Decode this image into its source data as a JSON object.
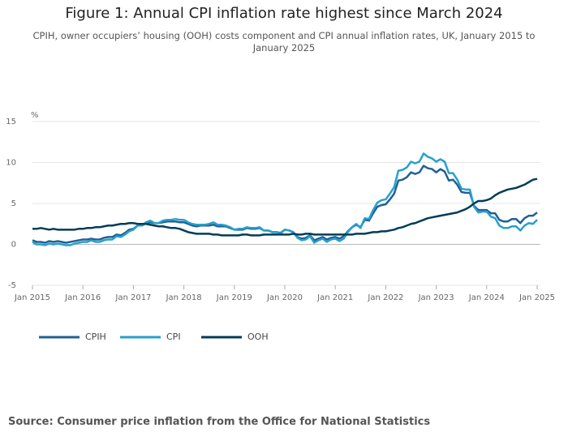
{
  "chart_data": {
    "type": "line",
    "title": "Figure 1: Annual CPI inflation rate highest since March 2024",
    "subtitle": "CPIH, owner occupiers’ housing (OOH) costs component and CPI annual inflation rates, UK, January 2015 to January 2025",
    "y_unit": "%",
    "source": "Source: Consumer price inflation from the Office for National Statistics",
    "x": [
      "2015-01",
      "2015-02",
      "2015-03",
      "2015-04",
      "2015-05",
      "2015-06",
      "2015-07",
      "2015-08",
      "2015-09",
      "2015-10",
      "2015-11",
      "2015-12",
      "2016-01",
      "2016-02",
      "2016-03",
      "2016-04",
      "2016-05",
      "2016-06",
      "2016-07",
      "2016-08",
      "2016-09",
      "2016-10",
      "2016-11",
      "2016-12",
      "2017-01",
      "2017-02",
      "2017-03",
      "2017-04",
      "2017-05",
      "2017-06",
      "2017-07",
      "2017-08",
      "2017-09",
      "2017-10",
      "2017-11",
      "2017-12",
      "2018-01",
      "2018-02",
      "2018-03",
      "2018-04",
      "2018-05",
      "2018-06",
      "2018-07",
      "2018-08",
      "2018-09",
      "2018-10",
      "2018-11",
      "2018-12",
      "2019-01",
      "2019-02",
      "2019-03",
      "2019-04",
      "2019-05",
      "2019-06",
      "2019-07",
      "2019-08",
      "2019-09",
      "2019-10",
      "2019-11",
      "2019-12",
      "2020-01",
      "2020-02",
      "2020-03",
      "2020-04",
      "2020-05",
      "2020-06",
      "2020-07",
      "2020-08",
      "2020-09",
      "2020-10",
      "2020-11",
      "2020-12",
      "2021-01",
      "2021-02",
      "2021-03",
      "2021-04",
      "2021-05",
      "2021-06",
      "2021-07",
      "2021-08",
      "2021-09",
      "2021-10",
      "2021-11",
      "2021-12",
      "2022-01",
      "2022-02",
      "2022-03",
      "2022-04",
      "2022-05",
      "2022-06",
      "2022-07",
      "2022-08",
      "2022-09",
      "2022-10",
      "2022-11",
      "2022-12",
      "2023-01",
      "2023-02",
      "2023-03",
      "2023-04",
      "2023-05",
      "2023-06",
      "2023-07",
      "2023-08",
      "2023-09",
      "2023-10",
      "2023-11",
      "2023-12",
      "2024-01",
      "2024-02",
      "2024-03",
      "2024-04",
      "2024-05",
      "2024-06",
      "2024-07",
      "2024-08",
      "2024-09",
      "2024-10",
      "2024-11",
      "2024-12",
      "2025-01"
    ],
    "series": [
      {
        "name": "CPIH",
        "color": "#206095",
        "values": [
          0.5,
          0.3,
          0.3,
          0.2,
          0.4,
          0.3,
          0.4,
          0.3,
          0.2,
          0.3,
          0.4,
          0.5,
          0.6,
          0.6,
          0.7,
          0.6,
          0.6,
          0.8,
          0.9,
          0.9,
          1.2,
          1.1,
          1.4,
          1.8,
          1.9,
          2.3,
          2.3,
          2.6,
          2.7,
          2.6,
          2.6,
          2.7,
          2.8,
          2.8,
          2.8,
          2.7,
          2.7,
          2.5,
          2.3,
          2.2,
          2.3,
          2.3,
          2.3,
          2.4,
          2.2,
          2.2,
          2.2,
          2.0,
          1.8,
          1.8,
          1.8,
          2.0,
          1.9,
          1.9,
          2.0,
          1.7,
          1.7,
          1.5,
          1.5,
          1.4,
          1.8,
          1.7,
          1.5,
          0.9,
          0.7,
          0.8,
          1.1,
          0.5,
          0.7,
          0.9,
          0.6,
          0.8,
          0.9,
          0.7,
          1.0,
          1.6,
          2.1,
          2.4,
          2.1,
          3.0,
          2.9,
          3.8,
          4.6,
          4.8,
          4.9,
          5.5,
          6.2,
          7.8,
          7.9,
          8.2,
          8.8,
          8.6,
          8.8,
          9.6,
          9.3,
          9.2,
          8.8,
          9.2,
          8.9,
          7.8,
          7.9,
          7.3,
          6.4,
          6.3,
          6.3,
          4.7,
          4.2,
          4.2,
          4.2,
          3.8,
          3.8,
          3.0,
          2.8,
          2.8,
          3.1,
          3.1,
          2.6,
          3.2,
          3.5,
          3.5,
          3.9
        ]
      },
      {
        "name": "CPI",
        "color": "#27a0cc",
        "values": [
          0.3,
          0.0,
          0.0,
          -0.1,
          0.1,
          0.0,
          0.1,
          0.0,
          -0.1,
          -0.1,
          0.1,
          0.2,
          0.3,
          0.3,
          0.5,
          0.3,
          0.3,
          0.5,
          0.6,
          0.6,
          1.0,
          0.9,
          1.2,
          1.6,
          1.8,
          2.3,
          2.3,
          2.7,
          2.9,
          2.6,
          2.6,
          2.9,
          3.0,
          3.0,
          3.1,
          3.0,
          3.0,
          2.7,
          2.5,
          2.4,
          2.4,
          2.4,
          2.5,
          2.7,
          2.4,
          2.4,
          2.3,
          2.1,
          1.8,
          1.9,
          1.9,
          2.1,
          2.0,
          2.0,
          2.1,
          1.7,
          1.7,
          1.5,
          1.5,
          1.3,
          1.8,
          1.7,
          1.5,
          0.8,
          0.5,
          0.6,
          1.0,
          0.2,
          0.5,
          0.7,
          0.3,
          0.6,
          0.7,
          0.4,
          0.7,
          1.5,
          2.1,
          2.5,
          2.0,
          3.2,
          3.1,
          4.2,
          5.1,
          5.4,
          5.5,
          6.2,
          7.0,
          9.0,
          9.1,
          9.4,
          10.1,
          9.9,
          10.1,
          11.1,
          10.7,
          10.5,
          10.1,
          10.4,
          10.1,
          8.7,
          8.7,
          7.9,
          6.8,
          6.7,
          6.7,
          4.6,
          3.9,
          4.0,
          4.0,
          3.4,
          3.2,
          2.3,
          2.0,
          2.0,
          2.2,
          2.2,
          1.7,
          2.3,
          2.6,
          2.5,
          3.0
        ]
      },
      {
        "name": "OOH",
        "color": "#003c57",
        "values": [
          1.9,
          1.9,
          2.0,
          1.9,
          1.8,
          1.9,
          1.8,
          1.8,
          1.8,
          1.8,
          1.8,
          1.9,
          1.9,
          2.0,
          2.0,
          2.1,
          2.1,
          2.2,
          2.3,
          2.3,
          2.4,
          2.5,
          2.5,
          2.6,
          2.6,
          2.5,
          2.5,
          2.5,
          2.4,
          2.3,
          2.2,
          2.2,
          2.1,
          2.0,
          2.0,
          1.9,
          1.7,
          1.5,
          1.4,
          1.3,
          1.3,
          1.3,
          1.3,
          1.2,
          1.2,
          1.1,
          1.1,
          1.1,
          1.1,
          1.1,
          1.2,
          1.2,
          1.1,
          1.1,
          1.1,
          1.2,
          1.2,
          1.2,
          1.2,
          1.2,
          1.2,
          1.2,
          1.3,
          1.2,
          1.2,
          1.3,
          1.3,
          1.2,
          1.2,
          1.2,
          1.2,
          1.2,
          1.2,
          1.2,
          1.2,
          1.2,
          1.2,
          1.3,
          1.3,
          1.3,
          1.4,
          1.5,
          1.5,
          1.6,
          1.6,
          1.7,
          1.8,
          2.0,
          2.1,
          2.3,
          2.5,
          2.6,
          2.8,
          3.0,
          3.2,
          3.3,
          3.4,
          3.5,
          3.6,
          3.7,
          3.8,
          3.9,
          4.1,
          4.3,
          4.6,
          5.0,
          5.3,
          5.3,
          5.4,
          5.6,
          6.0,
          6.3,
          6.5,
          6.7,
          6.8,
          6.9,
          7.1,
          7.3,
          7.6,
          7.9,
          8.0
        ]
      }
    ],
    "xlim": [
      "2015-01",
      "2025-01"
    ],
    "xticks": [
      {
        "value": "2015-01",
        "label": "Jan 2015"
      },
      {
        "value": "2016-01",
        "label": "Jan 2016"
      },
      {
        "value": "2017-01",
        "label": "Jan 2017"
      },
      {
        "value": "2018-01",
        "label": "Jan 2018"
      },
      {
        "value": "2019-01",
        "label": "Jan 2019"
      },
      {
        "value": "2020-01",
        "label": "Jan 2020"
      },
      {
        "value": "2021-01",
        "label": "Jan 2021"
      },
      {
        "value": "2022-01",
        "label": "Jan 2022"
      },
      {
        "value": "2023-01",
        "label": "Jan 2023"
      },
      {
        "value": "2024-01",
        "label": "Jan 2024"
      },
      {
        "value": "2025-01",
        "label": "Jan 2025"
      }
    ],
    "ylim": [
      -5,
      15
    ],
    "yticks": [
      -5,
      0,
      5,
      10,
      15
    ],
    "grid": true,
    "legend": "bottom-left"
  }
}
